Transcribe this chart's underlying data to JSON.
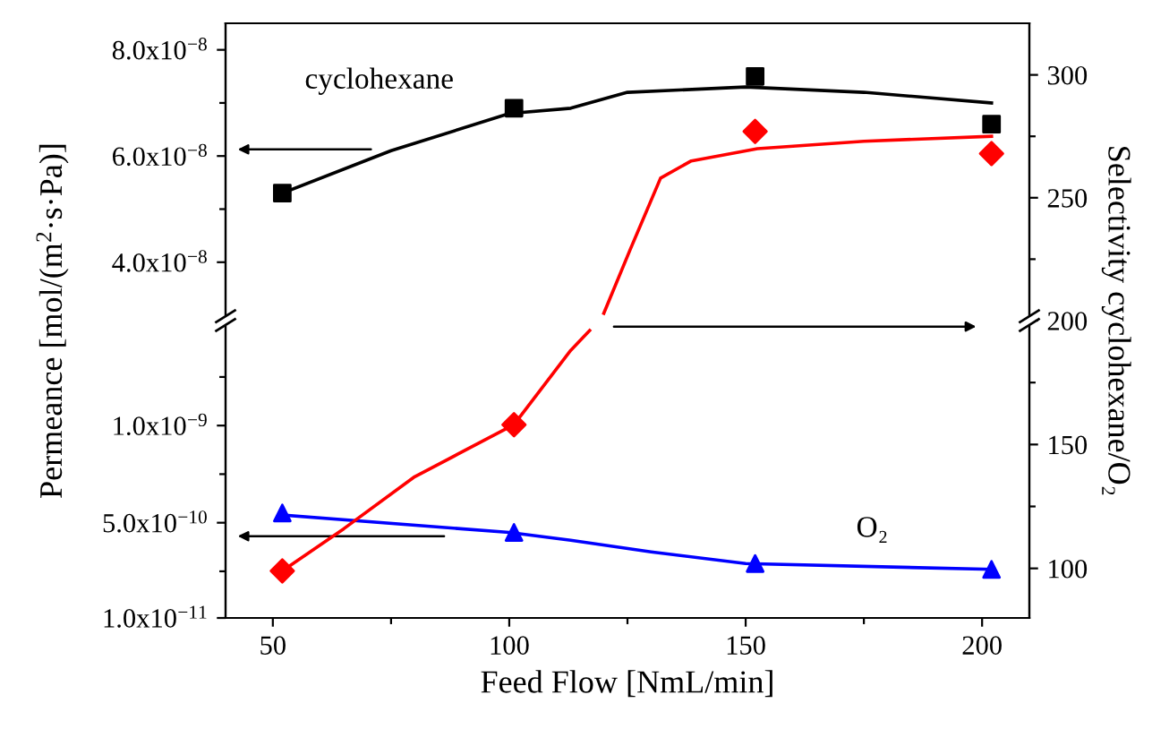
{
  "chart_data": [
    {
      "type": "scatter",
      "ylabel": "Permeance [mol/(m$^{2}$·s·Pa)]",
      "y2label": "Selectivity cyclohexane/O₂",
      "tick_labels": "y",
      "xlim": [
        40,
        210
      ],
      "xticks": [
        50,
        100,
        150,
        200
      ],
      "ylim": [
        2.9e-08,
        8.5e-08
      ],
      "yticks": [
        {
          "value": 4e-08,
          "label": "4.0x10$^{−8}$"
        },
        {
          "value": 6e-08,
          "label": "6.0x10$^{−8}$"
        },
        {
          "value": 8e-08,
          "label": "8.0x10$^{−8}$"
        },
        {
          "value": 5e-08,
          "label": null
        },
        {
          "value": 7e-08,
          "label": null
        }
      ],
      "y2lim": [
        200,
        321
      ],
      "y2ticks": [
        250,
        300,
        {
          "value": 225,
          "label": null
        },
        {
          "value": 275,
          "label": null
        }
      ],
      "series": [
        {
          "name": "cyclohexane",
          "color": "#000000",
          "marker": "square",
          "x": [
            52,
            101,
            152,
            202
          ],
          "values": [
            5.3e-08,
            6.9e-08,
            7.5e-08,
            6.6e-08
          ]
        },
        {
          "type": "line",
          "color": "#000000",
          "x": [
            52,
            75,
            100,
            113,
            125,
            150,
            175,
            202
          ],
          "values": [
            5.3e-08,
            6.1e-08,
            6.8e-08,
            6.9e-08,
            7.2e-08,
            7.3e-08,
            7.2e-08,
            7e-08
          ]
        },
        {
          "axis": "y2",
          "color": "#ff0000",
          "marker": "diamond",
          "x": [
            152,
            202
          ],
          "values": [
            277,
            268
          ]
        },
        {
          "type": "line",
          "axis": "y2",
          "color": "#ff0000",
          "x": [
            120,
            125.6,
            132,
            138.5,
            152.5,
            175,
            202
          ],
          "values": [
            203,
            229,
            258,
            265,
            270,
            273,
            275
          ]
        }
      ]
    },
    {
      "type": "scatter",
      "xlabel": "Feed Flow [NmL/min]",
      "xlim": [
        40,
        210
      ],
      "xticks": [
        50,
        100,
        150,
        200,
        {
          "value": 75,
          "label": null
        },
        {
          "value": 125,
          "label": null
        },
        {
          "value": 175,
          "label": null
        }
      ],
      "ylim": [
        1e-11,
        1.54e-09
      ],
      "yticks": [
        {
          "value": 1e-11,
          "label": "1.0x10$^{−11}$"
        },
        {
          "value": 5e-10,
          "label": "5.0x10$^{−10}$"
        },
        {
          "value": 1e-09,
          "label": "1.0x10$^{−9}$"
        },
        {
          "value": 2.5e-10,
          "label": null
        },
        {
          "value": 7.5e-10,
          "label": null
        },
        {
          "value": 1.25e-09,
          "label": null
        }
      ],
      "y2lim": [
        80,
        200
      ],
      "y2ticks": [
        100,
        150,
        200,
        {
          "value": 125,
          "label": null
        },
        {
          "value": 175,
          "label": null
        }
      ],
      "series": [
        {
          "name": "O₂",
          "color": "#0000ff",
          "marker": "triangle",
          "x": [
            52,
            101,
            152,
            202
          ],
          "values": [
            5.5e-10,
            4.5e-10,
            2.9e-10,
            2.6e-10
          ]
        },
        {
          "type": "line",
          "color": "#0000ff",
          "x": [
            52,
            100,
            113,
            130,
            150,
            202
          ],
          "values": [
            5.4e-10,
            4.5e-10,
            4.1e-10,
            3.5e-10,
            2.9e-10,
            2.6e-10
          ]
        },
        {
          "axis": "y2",
          "color": "#ff0000",
          "marker": "diamond",
          "x": [
            52,
            101
          ],
          "values": [
            99,
            158
          ]
        },
        {
          "type": "line",
          "axis": "y2",
          "color": "#ff0000",
          "x": [
            52,
            65,
            80,
            101,
            113,
            117
          ],
          "values": [
            99,
            116,
            137,
            158,
            188,
            196
          ]
        }
      ]
    }
  ]
}
